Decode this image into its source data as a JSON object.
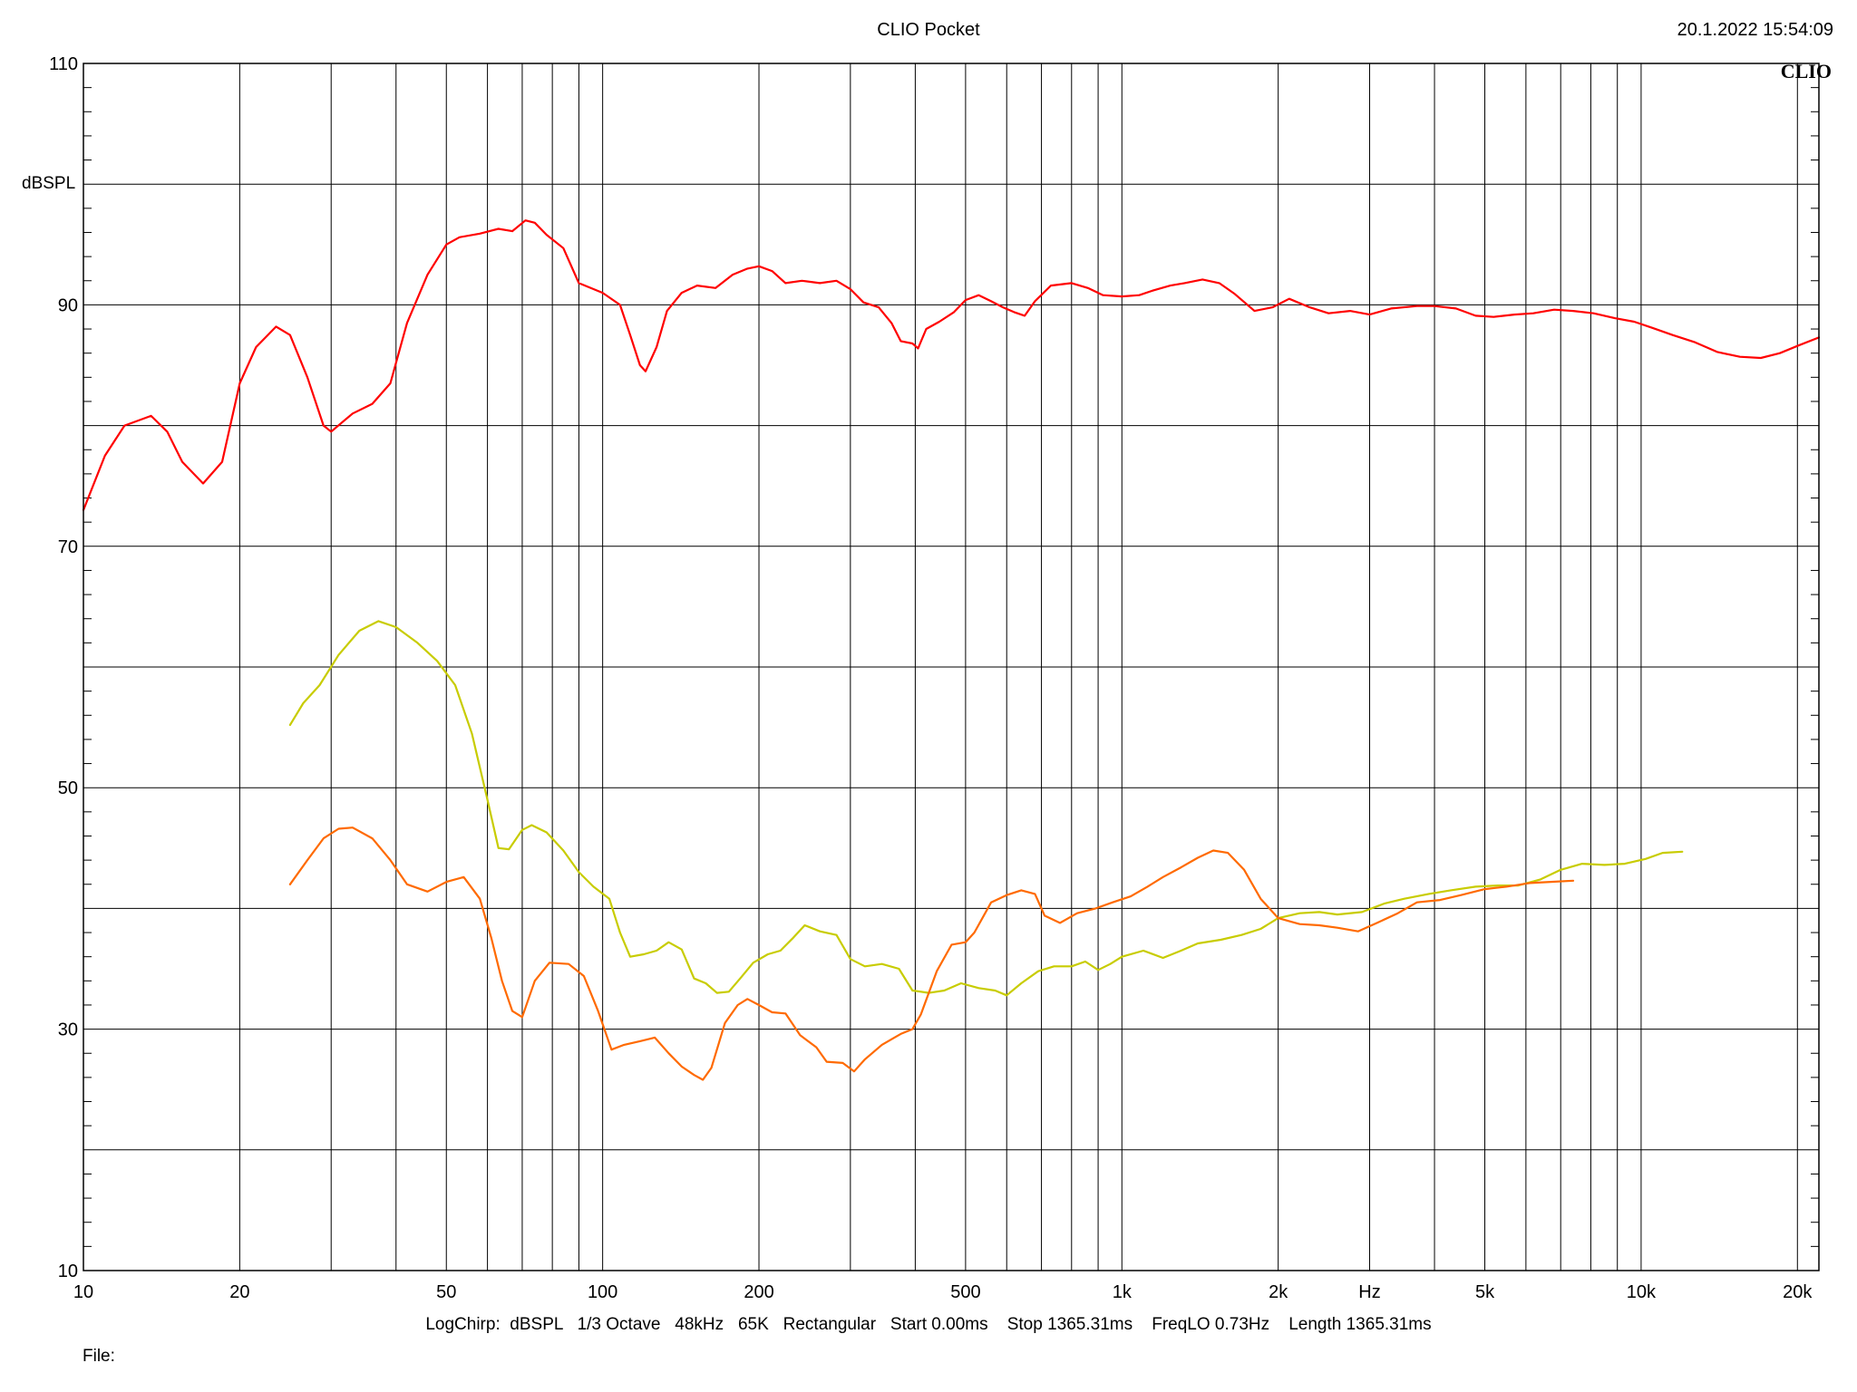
{
  "header": {
    "title": "CLIO Pocket",
    "timestamp": "20.1.2022 15:54:09",
    "brand": "CLIO"
  },
  "footer": {
    "settings": "LogChirp:  dBSPL   1/3 Octave   48kHz   65K   Rectangular   Start 0.00ms    Stop 1365.31ms    FreqLO 0.73Hz    Length 1365.31ms",
    "file_label": "File:"
  },
  "colors": {
    "background": "#ffffff",
    "grid": "#000000",
    "series": [
      "#ff0000",
      "#c8cc00",
      "#ff6a00"
    ]
  },
  "chart_data": {
    "type": "line",
    "title": "CLIO Pocket",
    "xlabel": "Hz",
    "ylabel": "dBSPL",
    "xscale": "log",
    "xlim": [
      10,
      22000
    ],
    "ylim": [
      10,
      110
    ],
    "grid": true,
    "xticks": [
      {
        "v": 10,
        "label": "10"
      },
      {
        "v": 20,
        "label": "20"
      },
      {
        "v": 50,
        "label": "50"
      },
      {
        "v": 100,
        "label": "100"
      },
      {
        "v": 200,
        "label": "200"
      },
      {
        "v": 500,
        "label": "500"
      },
      {
        "v": 1000,
        "label": "1k"
      },
      {
        "v": 2000,
        "label": "2k"
      },
      {
        "v": 5000,
        "label": "5k"
      },
      {
        "v": 10000,
        "label": "10k"
      },
      {
        "v": 20000,
        "label": "20k"
      }
    ],
    "yticks": [
      110,
      90,
      70,
      50,
      30,
      10
    ],
    "series": [
      {
        "color": "#ff0000",
        "points": [
          [
            10,
            73
          ],
          [
            11,
            77.5
          ],
          [
            12,
            80
          ],
          [
            13.5,
            80.8
          ],
          [
            14.5,
            79.5
          ],
          [
            15.5,
            77
          ],
          [
            17,
            75.2
          ],
          [
            18.5,
            77
          ],
          [
            20,
            83.5
          ],
          [
            21.5,
            86.5
          ],
          [
            23.5,
            88.2
          ],
          [
            25,
            87.5
          ],
          [
            27,
            84
          ],
          [
            29,
            80
          ],
          [
            30,
            79.5
          ],
          [
            33,
            81
          ],
          [
            36,
            81.8
          ],
          [
            39,
            83.5
          ],
          [
            42,
            88.5
          ],
          [
            46,
            92.5
          ],
          [
            50,
            95
          ],
          [
            53,
            95.6
          ],
          [
            58,
            95.9
          ],
          [
            63,
            96.3
          ],
          [
            67,
            96.1
          ],
          [
            71,
            97
          ],
          [
            74,
            96.8
          ],
          [
            78,
            95.8
          ],
          [
            84,
            94.7
          ],
          [
            90,
            91.8
          ],
          [
            100,
            91
          ],
          [
            108,
            90
          ],
          [
            113,
            87.5
          ],
          [
            118,
            85
          ],
          [
            121,
            84.5
          ],
          [
            127,
            86.5
          ],
          [
            133,
            89.5
          ],
          [
            142,
            91
          ],
          [
            152,
            91.6
          ],
          [
            165,
            91.4
          ],
          [
            178,
            92.5
          ],
          [
            190,
            93
          ],
          [
            200,
            93.2
          ],
          [
            212,
            92.8
          ],
          [
            225,
            91.8
          ],
          [
            242,
            92
          ],
          [
            262,
            91.8
          ],
          [
            282,
            92
          ],
          [
            300,
            91.3
          ],
          [
            318,
            90.2
          ],
          [
            340,
            89.8
          ],
          [
            360,
            88.5
          ],
          [
            375,
            87
          ],
          [
            395,
            86.8
          ],
          [
            405,
            86.4
          ],
          [
            420,
            88
          ],
          [
            445,
            88.6
          ],
          [
            475,
            89.4
          ],
          [
            500,
            90.4
          ],
          [
            530,
            90.8
          ],
          [
            560,
            90.3
          ],
          [
            590,
            89.8
          ],
          [
            620,
            89.4
          ],
          [
            650,
            89.1
          ],
          [
            680,
            90.3
          ],
          [
            730,
            91.6
          ],
          [
            800,
            91.8
          ],
          [
            860,
            91.4
          ],
          [
            920,
            90.8
          ],
          [
            1000,
            90.7
          ],
          [
            1080,
            90.8
          ],
          [
            1150,
            91.2
          ],
          [
            1240,
            91.6
          ],
          [
            1320,
            91.8
          ],
          [
            1430,
            92.1
          ],
          [
            1540,
            91.8
          ],
          [
            1650,
            90.9
          ],
          [
            1800,
            89.5
          ],
          [
            1950,
            89.8
          ],
          [
            2100,
            90.5
          ],
          [
            2300,
            89.8
          ],
          [
            2500,
            89.3
          ],
          [
            2750,
            89.5
          ],
          [
            3000,
            89.2
          ],
          [
            3300,
            89.7
          ],
          [
            3700,
            89.9
          ],
          [
            4000,
            89.9
          ],
          [
            4400,
            89.7
          ],
          [
            4800,
            89.1
          ],
          [
            5200,
            89
          ],
          [
            5700,
            89.2
          ],
          [
            6200,
            89.3
          ],
          [
            6800,
            89.6
          ],
          [
            7400,
            89.5
          ],
          [
            8100,
            89.3
          ],
          [
            8900,
            88.9
          ],
          [
            9700,
            88.6
          ],
          [
            10500,
            88.1
          ],
          [
            11500,
            87.5
          ],
          [
            12700,
            86.9
          ],
          [
            14000,
            86.1
          ],
          [
            15500,
            85.7
          ],
          [
            17000,
            85.6
          ],
          [
            18500,
            86
          ],
          [
            20000,
            86.6
          ],
          [
            22000,
            87.3
          ]
        ]
      },
      {
        "color": "#c8cc00",
        "points": [
          [
            25,
            55.2
          ],
          [
            26.5,
            57
          ],
          [
            28.5,
            58.5
          ],
          [
            31,
            61
          ],
          [
            34,
            63
          ],
          [
            37,
            63.8
          ],
          [
            40,
            63.3
          ],
          [
            44,
            62
          ],
          [
            48,
            60.5
          ],
          [
            52,
            58.5
          ],
          [
            56,
            54.5
          ],
          [
            60,
            49
          ],
          [
            63,
            45
          ],
          [
            66,
            44.9
          ],
          [
            70,
            46.5
          ],
          [
            73,
            46.9
          ],
          [
            78,
            46.3
          ],
          [
            84,
            44.8
          ],
          [
            90,
            43
          ],
          [
            96,
            41.8
          ],
          [
            103,
            40.8
          ],
          [
            108,
            38
          ],
          [
            113,
            36
          ],
          [
            120,
            36.2
          ],
          [
            127,
            36.5
          ],
          [
            134,
            37.2
          ],
          [
            142,
            36.6
          ],
          [
            150,
            34.2
          ],
          [
            158,
            33.8
          ],
          [
            166,
            33
          ],
          [
            175,
            33.1
          ],
          [
            184,
            34.2
          ],
          [
            195,
            35.5
          ],
          [
            208,
            36.2
          ],
          [
            220,
            36.5
          ],
          [
            232,
            37.5
          ],
          [
            245,
            38.6
          ],
          [
            262,
            38.1
          ],
          [
            282,
            37.8
          ],
          [
            300,
            35.8
          ],
          [
            320,
            35.2
          ],
          [
            345,
            35.4
          ],
          [
            372,
            35
          ],
          [
            395,
            33.2
          ],
          [
            425,
            33
          ],
          [
            455,
            33.2
          ],
          [
            490,
            33.8
          ],
          [
            530,
            33.4
          ],
          [
            570,
            33.2
          ],
          [
            600,
            32.8
          ],
          [
            640,
            33.8
          ],
          [
            690,
            34.8
          ],
          [
            740,
            35.2
          ],
          [
            800,
            35.2
          ],
          [
            850,
            35.6
          ],
          [
            900,
            34.9
          ],
          [
            950,
            35.4
          ],
          [
            1000,
            36
          ],
          [
            1100,
            36.5
          ],
          [
            1200,
            35.9
          ],
          [
            1300,
            36.5
          ],
          [
            1400,
            37.1
          ],
          [
            1550,
            37.4
          ],
          [
            1700,
            37.8
          ],
          [
            1850,
            38.3
          ],
          [
            2000,
            39.2
          ],
          [
            2200,
            39.6
          ],
          [
            2400,
            39.7
          ],
          [
            2600,
            39.5
          ],
          [
            2900,
            39.7
          ],
          [
            3200,
            40.4
          ],
          [
            3500,
            40.8
          ],
          [
            3900,
            41.2
          ],
          [
            4300,
            41.5
          ],
          [
            4800,
            41.8
          ],
          [
            5300,
            41.9
          ],
          [
            5800,
            41.9
          ],
          [
            6400,
            42.4
          ],
          [
            7000,
            43.2
          ],
          [
            7700,
            43.7
          ],
          [
            8500,
            43.6
          ],
          [
            9300,
            43.7
          ],
          [
            10200,
            44.1
          ],
          [
            11000,
            44.6
          ],
          [
            12000,
            44.7
          ]
        ]
      },
      {
        "color": "#ff6a00",
        "points": [
          [
            25,
            42
          ],
          [
            27,
            44
          ],
          [
            29,
            45.8
          ],
          [
            31,
            46.6
          ],
          [
            33,
            46.7
          ],
          [
            36,
            45.8
          ],
          [
            39,
            44
          ],
          [
            42,
            42
          ],
          [
            46,
            41.4
          ],
          [
            50,
            42.2
          ],
          [
            54,
            42.6
          ],
          [
            58,
            40.8
          ],
          [
            61,
            37.6
          ],
          [
            64,
            34
          ],
          [
            67,
            31.5
          ],
          [
            70,
            31
          ],
          [
            74,
            34
          ],
          [
            79,
            35.5
          ],
          [
            86,
            35.4
          ],
          [
            92,
            34.4
          ],
          [
            98,
            31.5
          ],
          [
            104,
            28.3
          ],
          [
            110,
            28.7
          ],
          [
            118,
            29
          ],
          [
            126,
            29.3
          ],
          [
            134,
            28
          ],
          [
            142,
            26.9
          ],
          [
            150,
            26.2
          ],
          [
            156,
            25.8
          ],
          [
            162,
            26.8
          ],
          [
            172,
            30.5
          ],
          [
            182,
            32
          ],
          [
            190,
            32.5
          ],
          [
            200,
            32
          ],
          [
            212,
            31.4
          ],
          [
            225,
            31.3
          ],
          [
            240,
            29.5
          ],
          [
            258,
            28.5
          ],
          [
            270,
            27.3
          ],
          [
            290,
            27.2
          ],
          [
            305,
            26.5
          ],
          [
            320,
            27.5
          ],
          [
            345,
            28.7
          ],
          [
            375,
            29.6
          ],
          [
            395,
            30
          ],
          [
            410,
            31.2
          ],
          [
            440,
            34.8
          ],
          [
            470,
            37
          ],
          [
            500,
            37.2
          ],
          [
            520,
            38
          ],
          [
            560,
            40.5
          ],
          [
            600,
            41.1
          ],
          [
            640,
            41.5
          ],
          [
            680,
            41.2
          ],
          [
            710,
            39.4
          ],
          [
            760,
            38.8
          ],
          [
            820,
            39.6
          ],
          [
            890,
            40
          ],
          [
            960,
            40.5
          ],
          [
            1040,
            41
          ],
          [
            1120,
            41.8
          ],
          [
            1200,
            42.6
          ],
          [
            1300,
            43.4
          ],
          [
            1400,
            44.2
          ],
          [
            1500,
            44.8
          ],
          [
            1600,
            44.6
          ],
          [
            1720,
            43.2
          ],
          [
            1850,
            40.8
          ],
          [
            2000,
            39.2
          ],
          [
            2200,
            38.7
          ],
          [
            2400,
            38.6
          ],
          [
            2600,
            38.4
          ],
          [
            2850,
            38.1
          ],
          [
            3100,
            38.8
          ],
          [
            3400,
            39.6
          ],
          [
            3700,
            40.5
          ],
          [
            4100,
            40.7
          ],
          [
            4500,
            41.1
          ],
          [
            5000,
            41.6
          ],
          [
            5500,
            41.8
          ],
          [
            6100,
            42.1
          ],
          [
            6700,
            42.2
          ],
          [
            7400,
            42.3
          ]
        ]
      }
    ]
  }
}
